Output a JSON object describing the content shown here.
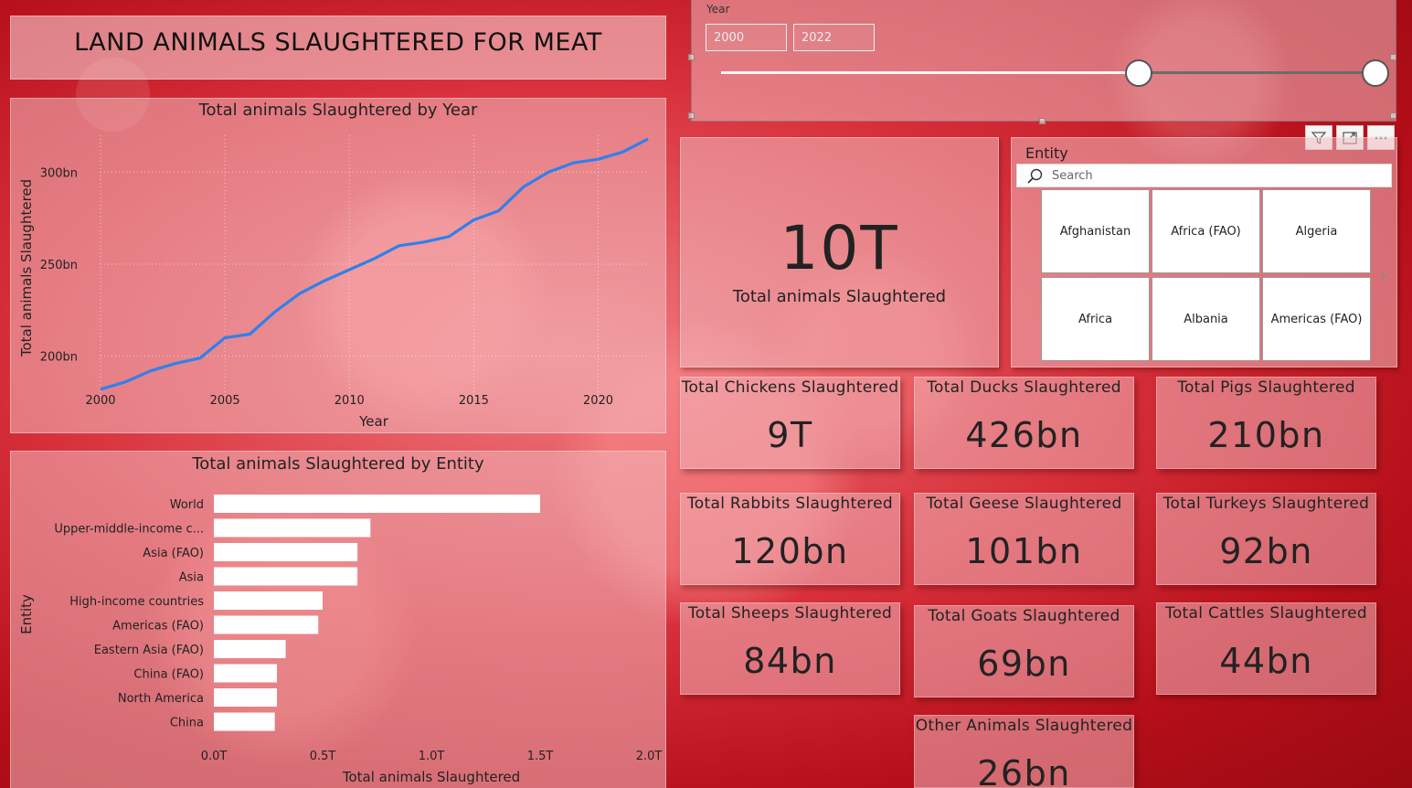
{
  "page": {
    "title": "LAND ANIMALS SLAUGHTERED FOR MEAT"
  },
  "year_slicer": {
    "label": "Year",
    "start": "2000",
    "end": "2022",
    "range_min": 2000,
    "range_max": 2022
  },
  "big_kpi": {
    "value": "10T",
    "label": "Total animals Slaughtered"
  },
  "entity_slicer": {
    "label": "Entity",
    "search_placeholder": "Search",
    "tiles": [
      "Afghanistan",
      "Africa (FAO)",
      "Algeria",
      "Africa",
      "Albania",
      "Americas (FAO)"
    ]
  },
  "cards": [
    {
      "label": "Total Chickens Slaughtered",
      "value": "9T"
    },
    {
      "label": "Total Ducks Slaughtered",
      "value": "426bn"
    },
    {
      "label": "Total Pigs Slaughtered",
      "value": "210bn"
    },
    {
      "label": "Total Rabbits Slaughtered",
      "value": "120bn"
    },
    {
      "label": "Total Geese Slaughtered",
      "value": "101bn"
    },
    {
      "label": "Total Turkeys Slaughtered",
      "value": "92bn"
    },
    {
      "label": "Total Sheeps Slaughtered",
      "value": "84bn"
    },
    {
      "label": "Total Goats Slaughtered",
      "value": "69bn"
    },
    {
      "label": "Total Cattles Slaughtered",
      "value": "44bn"
    },
    {
      "label": "Other Animals Slaughtered",
      "value": "26bn"
    }
  ],
  "icons": {
    "search": "search-icon",
    "filter": "filter-icon",
    "focus": "focus-mode-icon",
    "more": "more-options-icon",
    "next": "chevron-right-icon"
  },
  "colors": {
    "line": "#2f80ed",
    "bar": "#ffffff"
  },
  "chart_data": [
    {
      "type": "line",
      "title": "Total animals Slaughtered by Year",
      "xlabel": "Year",
      "ylabel": "Total animals Slaughtered",
      "x": [
        2000,
        2001,
        2002,
        2003,
        2004,
        2005,
        2006,
        2007,
        2008,
        2009,
        2010,
        2011,
        2012,
        2013,
        2014,
        2015,
        2016,
        2017,
        2018,
        2019,
        2020,
        2021,
        2022
      ],
      "values": [
        182,
        186,
        192,
        196,
        199,
        210,
        212,
        224,
        234,
        241,
        247,
        253,
        260,
        262,
        265,
        274,
        279,
        292,
        300,
        305,
        307,
        311,
        318
      ],
      "x_ticks": [
        "2000",
        "2005",
        "2010",
        "2015",
        "2020"
      ],
      "y_ticks": [
        "200bn",
        "250bn",
        "300bn"
      ],
      "unit": "bn",
      "ylim": [
        175,
        320
      ],
      "xlim": [
        2000,
        2022
      ],
      "grid": true
    },
    {
      "type": "bar",
      "orientation": "horizontal",
      "title": "Total animals Slaughtered by Entity",
      "xlabel": "Total animals Slaughtered",
      "ylabel": "Entity",
      "categories": [
        "World",
        "Upper-middle-income c...",
        "Asia (FAO)",
        "Asia",
        "High-income countries",
        "Americas (FAO)",
        "Eastern Asia (FAO)",
        "China (FAO)",
        "North America",
        "China"
      ],
      "values": [
        1.5,
        0.72,
        0.66,
        0.66,
        0.5,
        0.48,
        0.33,
        0.29,
        0.29,
        0.28
      ],
      "x_ticks": [
        "0.0T",
        "0.5T",
        "1.0T",
        "1.5T",
        "2.0T"
      ],
      "xlim": [
        0,
        2.0
      ],
      "unit": "T"
    }
  ]
}
